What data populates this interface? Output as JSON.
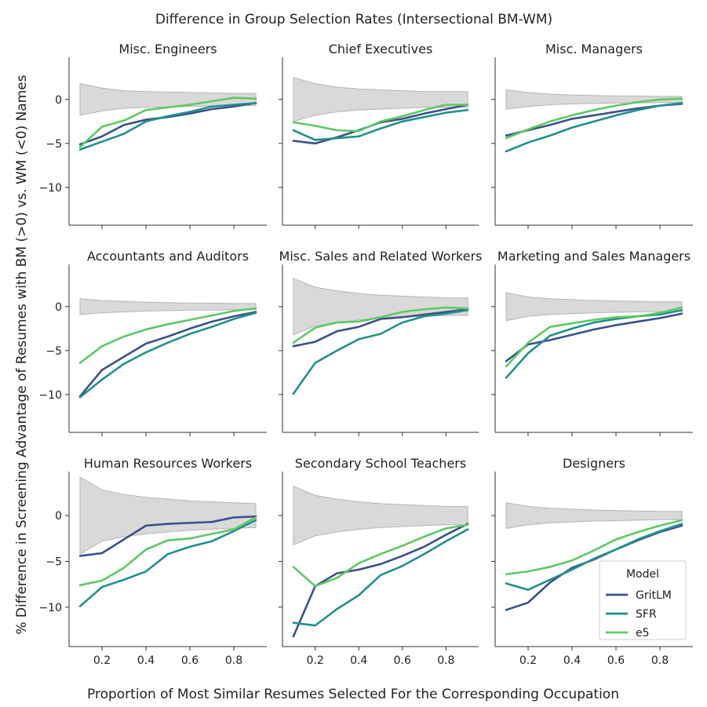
{
  "chart_data": {
    "type": "line",
    "title": "Difference in Group Selection Rates (Intersectional BM-WM)",
    "xlabel": "Proportion of Most Similar Resumes Selected For the Corresponding Occupation",
    "ylabel": "% Difference in Screening Advantage of Resumes with BM (>0) vs. WM (<0) Names",
    "x": [
      0.1,
      0.2,
      0.3,
      0.4,
      0.5,
      0.6,
      0.7,
      0.8,
      0.9
    ],
    "xlim": [
      0.05,
      0.95
    ],
    "xticks": [
      0.2,
      0.4,
      0.6,
      0.8
    ],
    "xtick_labels": [
      "0.2",
      "0.4",
      "0.6",
      "0.8"
    ],
    "yticks": [
      0,
      -5,
      -10
    ],
    "ytick_labels": [
      "0",
      "−5",
      "−10"
    ],
    "ylim_rows": [
      [
        -14.3,
        4.8
      ],
      [
        -14.3,
        4.8
      ],
      [
        -14.3,
        4.8
      ]
    ],
    "series_colors": {
      "GritLM": "#3b528b",
      "SFR": "#21918c",
      "e5": "#5ec962"
    },
    "band_color": "#d9d9d9",
    "legend": {
      "title": "Model",
      "entries": [
        "GritLM",
        "SFR",
        "e5"
      ],
      "placement": "lower-right"
    },
    "panels": [
      {
        "title": "Misc. Engineers",
        "band_upper": [
          1.8,
          1.3,
          1.0,
          0.9,
          0.85,
          0.8,
          0.75,
          0.7,
          0.7
        ],
        "band_lower": [
          -1.8,
          -1.3,
          -1.0,
          -0.9,
          -0.85,
          -0.8,
          -0.75,
          -0.7,
          -0.7
        ],
        "series": [
          {
            "name": "GritLM",
            "values": [
              -5.1,
              -4.2,
              -2.9,
              -2.3,
              -2.0,
              -1.6,
              -1.1,
              -0.8,
              -0.4
            ]
          },
          {
            "name": "SFR",
            "values": [
              -5.7,
              -4.8,
              -3.9,
              -2.5,
              -1.9,
              -1.4,
              -0.8,
              -0.6,
              -0.4
            ]
          },
          {
            "name": "e5",
            "values": [
              -5.4,
              -3.1,
              -2.4,
              -1.2,
              -0.9,
              -0.6,
              -0.2,
              0.2,
              0.1
            ]
          }
        ]
      },
      {
        "title": "Chief Executives",
        "band_upper": [
          2.5,
          1.8,
          1.4,
          1.2,
          1.1,
          1.0,
          0.9,
          0.9,
          0.9
        ],
        "band_lower": [
          -2.5,
          -1.8,
          -1.4,
          -1.2,
          -1.1,
          -1.0,
          -0.9,
          -0.9,
          -0.9
        ],
        "series": [
          {
            "name": "GritLM",
            "values": [
              -4.7,
              -5.0,
              -4.3,
              -3.5,
              -2.6,
              -2.2,
              -1.6,
              -1.1,
              -0.6
            ]
          },
          {
            "name": "SFR",
            "values": [
              -3.5,
              -4.6,
              -4.4,
              -4.2,
              -3.3,
              -2.5,
              -2.0,
              -1.5,
              -1.2
            ]
          },
          {
            "name": "e5",
            "values": [
              -2.6,
              -3.0,
              -3.5,
              -3.6,
              -2.5,
              -1.9,
              -1.2,
              -0.6,
              -0.6
            ]
          }
        ]
      },
      {
        "title": "Misc. Managers",
        "band_upper": [
          1.1,
          0.8,
          0.6,
          0.5,
          0.45,
          0.4,
          0.4,
          0.35,
          0.35
        ],
        "band_lower": [
          -1.1,
          -0.8,
          -0.6,
          -0.5,
          -0.45,
          -0.4,
          -0.4,
          -0.35,
          -0.35
        ],
        "series": [
          {
            "name": "GritLM",
            "values": [
              -4.1,
              -3.5,
              -2.9,
              -2.2,
              -1.8,
              -1.4,
              -1.0,
              -0.7,
              -0.5
            ]
          },
          {
            "name": "SFR",
            "values": [
              -5.9,
              -4.9,
              -4.1,
              -3.2,
              -2.5,
              -1.8,
              -1.2,
              -0.7,
              -0.4
            ]
          },
          {
            "name": "e5",
            "values": [
              -4.4,
              -3.4,
              -2.5,
              -1.8,
              -1.2,
              -0.7,
              -0.3,
              0.0,
              0.1
            ]
          }
        ]
      },
      {
        "title": "Accountants and Auditors",
        "band_upper": [
          0.9,
          0.7,
          0.6,
          0.5,
          0.45,
          0.4,
          0.4,
          0.35,
          0.35
        ],
        "band_lower": [
          -0.9,
          -0.7,
          -0.6,
          -0.5,
          -0.45,
          -0.4,
          -0.4,
          -0.35,
          -0.35
        ],
        "series": [
          {
            "name": "GritLM",
            "values": [
              -10.2,
              -7.2,
              -5.7,
              -4.2,
              -3.4,
              -2.5,
              -1.7,
              -1.1,
              -0.6
            ]
          },
          {
            "name": "SFR",
            "values": [
              -10.3,
              -8.3,
              -6.5,
              -5.2,
              -4.1,
              -3.1,
              -2.3,
              -1.4,
              -0.7
            ]
          },
          {
            "name": "e5",
            "values": [
              -6.4,
              -4.5,
              -3.4,
              -2.6,
              -2.0,
              -1.5,
              -1.0,
              -0.5,
              -0.2
            ]
          }
        ]
      },
      {
        "title": "Misc. Sales and Related Workers",
        "band_upper": [
          3.2,
          2.2,
          1.8,
          1.5,
          1.3,
          1.2,
          1.1,
          1.0,
          1.0
        ],
        "band_lower": [
          -3.2,
          -2.2,
          -1.8,
          -1.5,
          -1.3,
          -1.2,
          -1.1,
          -1.0,
          -1.0
        ],
        "series": [
          {
            "name": "GritLM",
            "values": [
              -4.5,
              -4.0,
              -2.8,
              -2.3,
              -1.4,
              -1.2,
              -0.9,
              -0.6,
              -0.3
            ]
          },
          {
            "name": "SFR",
            "values": [
              -9.9,
              -6.4,
              -5.0,
              -3.7,
              -3.1,
              -1.8,
              -1.1,
              -0.8,
              -0.4
            ]
          },
          {
            "name": "e5",
            "values": [
              -4.1,
              -2.4,
              -1.8,
              -1.7,
              -1.2,
              -0.6,
              -0.3,
              -0.1,
              -0.2
            ]
          }
        ]
      },
      {
        "title": "Marketing and Sales Managers",
        "band_upper": [
          1.6,
          1.1,
          0.9,
          0.8,
          0.7,
          0.65,
          0.6,
          0.55,
          0.55
        ],
        "band_lower": [
          -1.6,
          -1.1,
          -0.9,
          -0.8,
          -0.7,
          -0.65,
          -0.6,
          -0.55,
          -0.55
        ],
        "series": [
          {
            "name": "GritLM",
            "values": [
              -6.2,
              -4.3,
              -3.8,
              -3.2,
              -2.6,
              -2.1,
              -1.7,
              -1.3,
              -0.8
            ]
          },
          {
            "name": "SFR",
            "values": [
              -8.1,
              -5.3,
              -3.3,
              -2.5,
              -1.8,
              -1.4,
              -1.1,
              -0.9,
              -0.4
            ]
          },
          {
            "name": "e5",
            "values": [
              -6.8,
              -4.1,
              -2.3,
              -1.9,
              -1.5,
              -1.2,
              -1.1,
              -0.7,
              -0.1
            ]
          }
        ]
      },
      {
        "title": "Human Resources Workers",
        "band_upper": [
          4.2,
          2.8,
          2.3,
          2.0,
          1.8,
          1.6,
          1.5,
          1.4,
          1.3
        ],
        "band_lower": [
          -4.2,
          -2.8,
          -2.3,
          -2.0,
          -1.8,
          -1.6,
          -1.5,
          -1.4,
          -1.3
        ],
        "series": [
          {
            "name": "GritLM",
            "values": [
              -4.4,
              -4.1,
              -2.6,
              -1.1,
              -0.9,
              -0.8,
              -0.7,
              -0.2,
              -0.1
            ]
          },
          {
            "name": "SFR",
            "values": [
              -9.9,
              -7.8,
              -7.0,
              -6.1,
              -4.2,
              -3.4,
              -2.8,
              -1.7,
              -0.5
            ]
          },
          {
            "name": "e5",
            "values": [
              -7.6,
              -7.1,
              -5.7,
              -3.7,
              -2.7,
              -2.5,
              -2.0,
              -1.5,
              -0.2
            ]
          }
        ]
      },
      {
        "title": "Secondary School Teachers",
        "band_upper": [
          3.2,
          2.2,
          1.8,
          1.5,
          1.3,
          1.2,
          1.1,
          1.0,
          1.0
        ],
        "band_lower": [
          -3.2,
          -2.2,
          -1.8,
          -1.5,
          -1.3,
          -1.2,
          -1.1,
          -1.0,
          -1.0
        ],
        "series": [
          {
            "name": "GritLM",
            "values": [
              -13.2,
              -7.7,
              -6.3,
              -5.9,
              -5.3,
              -4.4,
              -3.4,
              -2.1,
              -0.9
            ]
          },
          {
            "name": "SFR",
            "values": [
              -11.7,
              -12.0,
              -10.2,
              -8.7,
              -6.5,
              -5.5,
              -4.2,
              -2.8,
              -1.5
            ]
          },
          {
            "name": "e5",
            "values": [
              -5.6,
              -7.7,
              -6.8,
              -5.2,
              -4.2,
              -3.3,
              -2.3,
              -1.4,
              -1.0
            ]
          }
        ]
      },
      {
        "title": "Designers",
        "band_upper": [
          1.4,
          1.0,
          0.8,
          0.7,
          0.6,
          0.55,
          0.5,
          0.45,
          0.45
        ],
        "band_lower": [
          -1.4,
          -1.0,
          -0.8,
          -0.7,
          -0.6,
          -0.55,
          -0.5,
          -0.45,
          -0.45
        ],
        "series": [
          {
            "name": "GritLM",
            "values": [
              -10.3,
              -9.5,
              -7.3,
              -5.7,
              -4.8,
              -3.7,
              -2.7,
              -1.8,
              -1.1
            ]
          },
          {
            "name": "SFR",
            "values": [
              -7.4,
              -8.1,
              -7.0,
              -5.9,
              -4.7,
              -3.7,
              -2.6,
              -1.7,
              -0.9
            ]
          },
          {
            "name": "e5",
            "values": [
              -6.4,
              -6.1,
              -5.6,
              -4.9,
              -3.8,
              -2.6,
              -1.8,
              -1.1,
              -0.5
            ]
          }
        ]
      }
    ]
  }
}
